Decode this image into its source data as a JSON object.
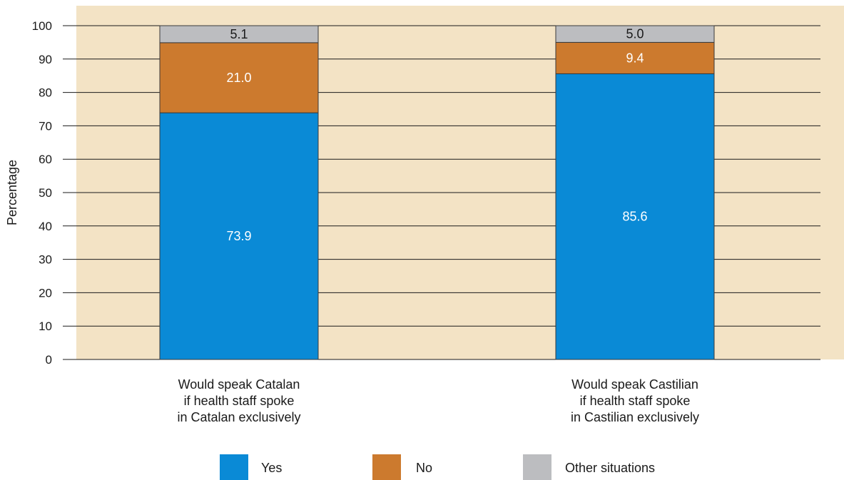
{
  "chart_data": {
    "type": "bar",
    "stacked": true,
    "ylabel": "Percentage",
    "ylim": [
      0,
      100
    ],
    "yticks": [
      0,
      10,
      20,
      30,
      40,
      50,
      60,
      70,
      80,
      90,
      100
    ],
    "grid": true,
    "legend_position": "bottom",
    "categories": [
      [
        "Would speak Catalan",
        "if health staff spoke",
        "in Catalan exclusively"
      ],
      [
        "Would speak Castilian",
        "if health staff spoke",
        "in Castilian exclusively"
      ]
    ],
    "series": [
      {
        "name": "Yes",
        "color": "#0a8ad6",
        "label_color": "#ffffff",
        "values": [
          73.9,
          85.6
        ],
        "labels": [
          "73.9",
          "85.6"
        ]
      },
      {
        "name": "No",
        "color": "#cc7a2e",
        "label_color": "#ffffff",
        "values": [
          21.0,
          9.4
        ],
        "labels": [
          "21.0",
          "9.4"
        ]
      },
      {
        "name": "Other situations",
        "color": "#bcbdc0",
        "label_color": "#1a1a1a",
        "values": [
          5.1,
          5.0
        ],
        "labels": [
          "5.1",
          "5.0"
        ]
      }
    ],
    "background_color": "#f3e3c5",
    "grid_color": "#1a1a1a"
  }
}
